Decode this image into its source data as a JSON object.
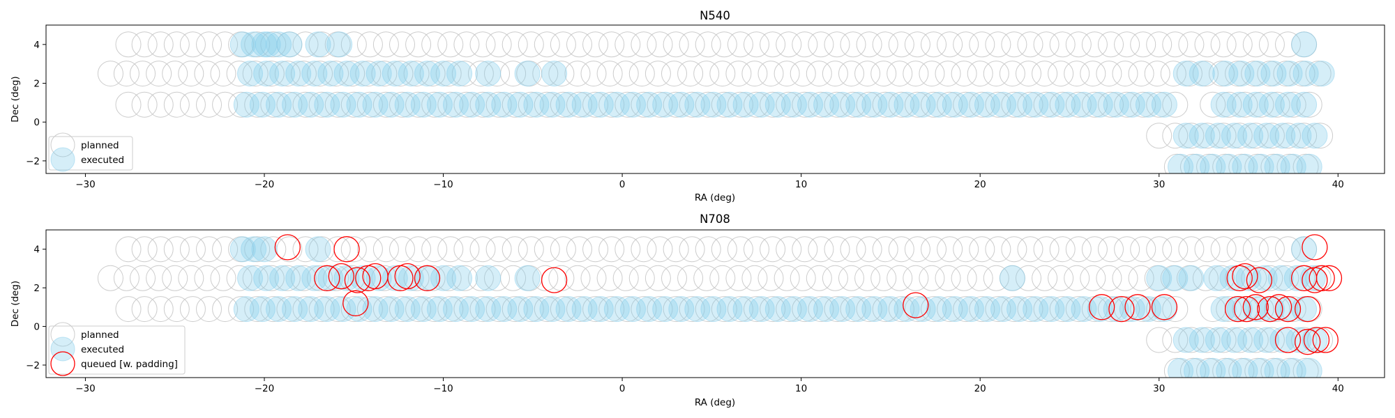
{
  "chart_data": [
    {
      "type": "scatter",
      "title": "N540",
      "xlabel": "RA (deg)",
      "ylabel": "Dec (deg)",
      "xlim": [
        -32.2,
        42.6
      ],
      "ylim": [
        -2.65,
        5.0
      ],
      "xticks": [
        -30,
        -20,
        -10,
        0,
        10,
        20,
        30,
        40
      ],
      "yticks": [
        -2,
        0,
        2,
        4
      ],
      "grid": false,
      "legend_position": "lower-left",
      "legend": [
        "planned",
        "executed"
      ],
      "colors": {
        "planned": "#cccccc",
        "executed": "#87ceeb"
      },
      "rows": {
        "planned": [
          {
            "dec": 4.0,
            "ra_start": -27.6,
            "ra_end": 38.6,
            "step": 0.9
          },
          {
            "dec": 2.5,
            "ra_start": -28.6,
            "ra_end": 39.2,
            "step": 0.9
          },
          {
            "dec": 0.9,
            "ra_start": -27.6,
            "ra_end": 31.1,
            "step": 0.9
          },
          {
            "dec": 0.9,
            "ra_start": 33.0,
            "ra_end": 38.6,
            "step": 0.9
          },
          {
            "dec": -0.7,
            "ra_start": 30.0,
            "ra_end": 39.2,
            "step": 0.9
          },
          {
            "dec": -2.3,
            "ra_start": 31.0,
            "ra_end": 39.0,
            "step": 0.9
          }
        ],
        "executed": [
          {
            "dec": 4.0,
            "ra_start": -21.2,
            "ra_end": -20.0,
            "step": 0.6
          },
          {
            "dec": 4.0,
            "ra_start": -19.8,
            "ra_end": -18.5,
            "step": 0.6
          },
          {
            "dec": 4.0,
            "ra_start": -17.0,
            "ra_end": -16.8,
            "step": 0.6
          },
          {
            "dec": 4.0,
            "ra_start": -15.8,
            "ra_end": -15.6,
            "step": 0.6
          },
          {
            "dec": 4.0,
            "ra_start": 38.1,
            "ra_end": 38.4,
            "step": 0.6
          },
          {
            "dec": 2.5,
            "ra_start": -20.8,
            "ra_end": -8.8,
            "step": 0.9
          },
          {
            "dec": 2.5,
            "ra_start": -7.5,
            "ra_end": -7.5,
            "step": 0.9
          },
          {
            "dec": 2.5,
            "ra_start": -5.3,
            "ra_end": -5.3,
            "step": 0.9
          },
          {
            "dec": 2.5,
            "ra_start": -3.8,
            "ra_end": -3.8,
            "step": 0.9
          },
          {
            "dec": 2.5,
            "ra_start": 31.5,
            "ra_end": 32.5,
            "step": 0.9
          },
          {
            "dec": 2.5,
            "ra_start": 33.7,
            "ra_end": 39.2,
            "step": 0.9
          },
          {
            "dec": 0.9,
            "ra_start": -21.0,
            "ra_end": 30.6,
            "step": 0.9
          },
          {
            "dec": 0.9,
            "ra_start": 33.6,
            "ra_end": 38.6,
            "step": 0.9
          },
          {
            "dec": -0.7,
            "ra_start": 31.5,
            "ra_end": 39.2,
            "step": 0.9
          },
          {
            "dec": -2.3,
            "ra_start": 31.2,
            "ra_end": 39.0,
            "step": 0.9
          }
        ]
      }
    },
    {
      "type": "scatter",
      "title": "N708",
      "xlabel": "RA (deg)",
      "ylabel": "Dec (deg)",
      "xlim": [
        -32.2,
        42.6
      ],
      "ylim": [
        -2.65,
        5.0
      ],
      "xticks": [
        -30,
        -20,
        -10,
        0,
        10,
        20,
        30,
        40
      ],
      "yticks": [
        -2,
        0,
        2,
        4
      ],
      "grid": false,
      "legend_position": "lower-left",
      "legend": [
        "planned",
        "executed",
        "queued [w. padding]"
      ],
      "colors": {
        "planned": "#cccccc",
        "executed": "#87ceeb",
        "queued": "#ff0000"
      },
      "rows": {
        "planned": [
          {
            "dec": 4.0,
            "ra_start": -27.6,
            "ra_end": 38.6,
            "step": 0.9
          },
          {
            "dec": 2.5,
            "ra_start": -28.6,
            "ra_end": 39.2,
            "step": 0.9
          },
          {
            "dec": 0.9,
            "ra_start": -27.6,
            "ra_end": 31.1,
            "step": 0.9
          },
          {
            "dec": 0.9,
            "ra_start": 33.0,
            "ra_end": 38.6,
            "step": 0.9
          },
          {
            "dec": -0.7,
            "ra_start": 30.0,
            "ra_end": 39.2,
            "step": 0.9
          },
          {
            "dec": -2.3,
            "ra_start": 31.0,
            "ra_end": 39.0,
            "step": 0.9
          }
        ],
        "executed": [
          {
            "dec": 4.0,
            "ra_start": -21.2,
            "ra_end": -20.0,
            "step": 0.6
          },
          {
            "dec": 4.0,
            "ra_start": -17.0,
            "ra_end": -16.8,
            "step": 0.6
          },
          {
            "dec": 4.0,
            "ra_start": 38.1,
            "ra_end": 38.4,
            "step": 0.6
          },
          {
            "dec": 2.5,
            "ra_start": -20.8,
            "ra_end": -8.8,
            "step": 0.9
          },
          {
            "dec": 2.5,
            "ra_start": -7.5,
            "ra_end": -7.5,
            "step": 0.9
          },
          {
            "dec": 2.5,
            "ra_start": -5.3,
            "ra_end": -5.3,
            "step": 0.9
          },
          {
            "dec": 2.5,
            "ra_start": 21.8,
            "ra_end": 21.8,
            "step": 0.9
          },
          {
            "dec": 2.5,
            "ra_start": 30.0,
            "ra_end": 32.0,
            "step": 0.9
          },
          {
            "dec": 2.5,
            "ra_start": 33.2,
            "ra_end": 39.2,
            "step": 0.9
          },
          {
            "dec": 0.9,
            "ra_start": -21.0,
            "ra_end": 30.6,
            "step": 0.9
          },
          {
            "dec": 0.9,
            "ra_start": 33.6,
            "ra_end": 38.6,
            "step": 0.9
          },
          {
            "dec": -0.7,
            "ra_start": 31.5,
            "ra_end": 39.2,
            "step": 0.9
          },
          {
            "dec": -2.3,
            "ra_start": 31.2,
            "ra_end": 39.0,
            "step": 0.9
          }
        ]
      },
      "queued": [
        {
          "ra": -18.7,
          "dec": 4.1
        },
        {
          "ra": -15.4,
          "dec": 4.0
        },
        {
          "ra": -16.5,
          "dec": 2.5
        },
        {
          "ra": -15.7,
          "dec": 2.6
        },
        {
          "ra": -14.8,
          "dec": 2.4
        },
        {
          "ra": -14.2,
          "dec": 2.5
        },
        {
          "ra": -13.8,
          "dec": 2.6
        },
        {
          "ra": -12.4,
          "dec": 2.5
        },
        {
          "ra": -12.0,
          "dec": 2.6
        },
        {
          "ra": -10.9,
          "dec": 2.5
        },
        {
          "ra": -3.8,
          "dec": 2.4
        },
        {
          "ra": -14.9,
          "dec": 1.2
        },
        {
          "ra": 16.4,
          "dec": 1.1
        },
        {
          "ra": 26.8,
          "dec": 1.0
        },
        {
          "ra": 27.9,
          "dec": 0.9
        },
        {
          "ra": 28.8,
          "dec": 1.0
        },
        {
          "ra": 30.3,
          "dec": 1.0
        },
        {
          "ra": 34.5,
          "dec": 2.5
        },
        {
          "ra": 34.8,
          "dec": 2.6
        },
        {
          "ra": 35.6,
          "dec": 2.4
        },
        {
          "ra": 38.1,
          "dec": 2.5
        },
        {
          "ra": 38.7,
          "dec": 2.4
        },
        {
          "ra": 39.1,
          "dec": 2.5
        },
        {
          "ra": 39.5,
          "dec": 2.5
        },
        {
          "ra": 34.4,
          "dec": 0.9
        },
        {
          "ra": 34.9,
          "dec": 0.9
        },
        {
          "ra": 35.4,
          "dec": 1.0
        },
        {
          "ra": 36.2,
          "dec": 0.9
        },
        {
          "ra": 36.7,
          "dec": 1.0
        },
        {
          "ra": 37.2,
          "dec": 0.9
        },
        {
          "ra": 38.3,
          "dec": 0.9
        },
        {
          "ra": 37.2,
          "dec": -0.7
        },
        {
          "ra": 38.3,
          "dec": -0.8
        },
        {
          "ra": 38.8,
          "dec": -0.7
        },
        {
          "ra": 39.3,
          "dec": -0.7
        },
        {
          "ra": 38.7,
          "dec": 4.1
        }
      ]
    }
  ]
}
